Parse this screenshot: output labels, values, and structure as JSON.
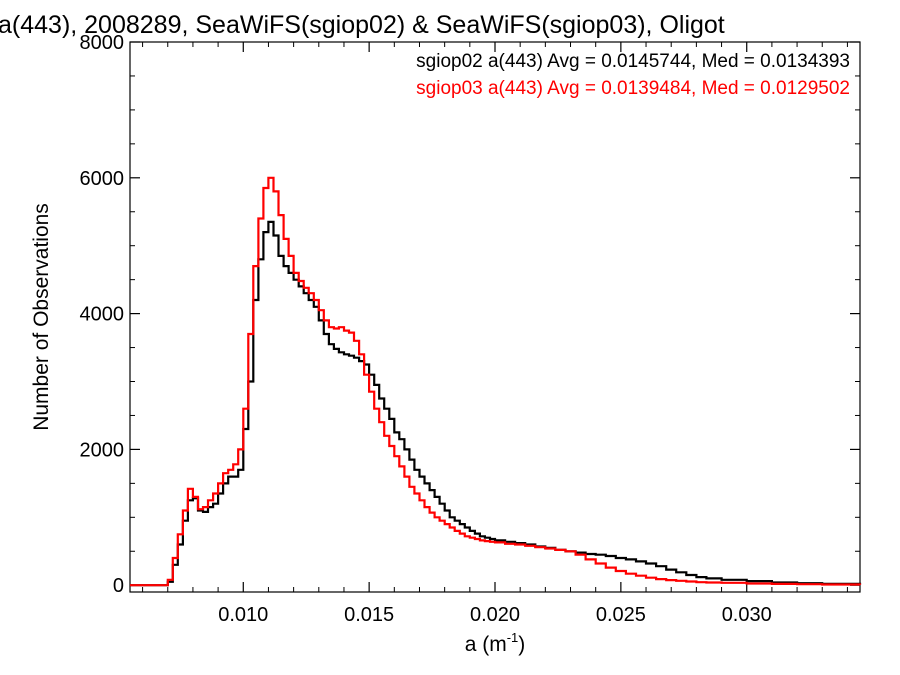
{
  "chart_data": {
    "type": "line",
    "title": "a(443), 2008289, SeaWiFS(sgiop02) & SeaWiFS(sgiop03), Oligot",
    "xlabel_base": "a (m",
    "xlabel_sup": "-1",
    "xlabel_close": ")",
    "ylabel": "Number of Observations",
    "xlim": [
      0.0055,
      0.0345
    ],
    "ylim": [
      -100,
      8000
    ],
    "x_ticks": [
      {
        "value": 0.01,
        "label": "0.010"
      },
      {
        "value": 0.015,
        "label": "0.015"
      },
      {
        "value": 0.02,
        "label": "0.020"
      },
      {
        "value": 0.025,
        "label": "0.025"
      },
      {
        "value": 0.03,
        "label": "0.030"
      }
    ],
    "y_ticks": [
      {
        "value": 0,
        "label": "0"
      },
      {
        "value": 2000,
        "label": "2000"
      },
      {
        "value": 4000,
        "label": "4000"
      },
      {
        "value": 6000,
        "label": "6000"
      },
      {
        "value": 8000,
        "label": "8000"
      }
    ],
    "grid": false,
    "legend_position": "top-right",
    "series": [
      {
        "name": "sgiop02",
        "legend": "sgiop02 a(443) Avg = 0.0145744, Med = 0.0134393",
        "color": "#000000",
        "points": [
          [
            0.0055,
            0
          ],
          [
            0.0068,
            0
          ],
          [
            0.007,
            50
          ],
          [
            0.0072,
            300
          ],
          [
            0.0074,
            600
          ],
          [
            0.0076,
            950
          ],
          [
            0.0078,
            1250
          ],
          [
            0.008,
            1280
          ],
          [
            0.0082,
            1100
          ],
          [
            0.0084,
            1080
          ],
          [
            0.0086,
            1150
          ],
          [
            0.0088,
            1200
          ],
          [
            0.009,
            1350
          ],
          [
            0.0092,
            1500
          ],
          [
            0.0094,
            1600
          ],
          [
            0.0096,
            1600
          ],
          [
            0.0098,
            1700
          ],
          [
            0.01,
            2300
          ],
          [
            0.0102,
            3000
          ],
          [
            0.0104,
            4200
          ],
          [
            0.0106,
            4800
          ],
          [
            0.0108,
            5200
          ],
          [
            0.011,
            5350
          ],
          [
            0.0112,
            5150
          ],
          [
            0.0114,
            4850
          ],
          [
            0.0116,
            4700
          ],
          [
            0.0118,
            4600
          ],
          [
            0.012,
            4500
          ],
          [
            0.0122,
            4400
          ],
          [
            0.0124,
            4300
          ],
          [
            0.0126,
            4200
          ],
          [
            0.0128,
            4100
          ],
          [
            0.013,
            3900
          ],
          [
            0.0132,
            3700
          ],
          [
            0.0134,
            3550
          ],
          [
            0.0136,
            3480
          ],
          [
            0.0138,
            3430
          ],
          [
            0.014,
            3400
          ],
          [
            0.0142,
            3380
          ],
          [
            0.0144,
            3350
          ],
          [
            0.0146,
            3300
          ],
          [
            0.0148,
            3250
          ],
          [
            0.015,
            3100
          ],
          [
            0.0152,
            2950
          ],
          [
            0.0154,
            2750
          ],
          [
            0.0156,
            2600
          ],
          [
            0.0158,
            2450
          ],
          [
            0.016,
            2250
          ],
          [
            0.0162,
            2150
          ],
          [
            0.0164,
            2000
          ],
          [
            0.0166,
            1850
          ],
          [
            0.0168,
            1700
          ],
          [
            0.017,
            1600
          ],
          [
            0.0172,
            1500
          ],
          [
            0.0174,
            1400
          ],
          [
            0.0176,
            1300
          ],
          [
            0.0178,
            1200
          ],
          [
            0.018,
            1100
          ],
          [
            0.0182,
            1000
          ],
          [
            0.0184,
            950
          ],
          [
            0.0186,
            900
          ],
          [
            0.0188,
            850
          ],
          [
            0.019,
            800
          ],
          [
            0.0192,
            760
          ],
          [
            0.0194,
            720
          ],
          [
            0.0196,
            700
          ],
          [
            0.0198,
            680
          ],
          [
            0.02,
            660
          ],
          [
            0.0204,
            640
          ],
          [
            0.0208,
            620
          ],
          [
            0.0212,
            600
          ],
          [
            0.0216,
            570
          ],
          [
            0.022,
            550
          ],
          [
            0.0224,
            520
          ],
          [
            0.0228,
            500
          ],
          [
            0.0232,
            480
          ],
          [
            0.0236,
            460
          ],
          [
            0.024,
            450
          ],
          [
            0.0244,
            430
          ],
          [
            0.0248,
            400
          ],
          [
            0.0252,
            380
          ],
          [
            0.0256,
            350
          ],
          [
            0.026,
            320
          ],
          [
            0.0264,
            280
          ],
          [
            0.0268,
            230
          ],
          [
            0.0272,
            190
          ],
          [
            0.0276,
            150
          ],
          [
            0.028,
            120
          ],
          [
            0.0284,
            100
          ],
          [
            0.029,
            80
          ],
          [
            0.03,
            60
          ],
          [
            0.031,
            40
          ],
          [
            0.032,
            30
          ],
          [
            0.033,
            20
          ],
          [
            0.0345,
            10
          ]
        ]
      },
      {
        "name": "sgiop03",
        "legend": "sgiop03 a(443) Avg = 0.0139484, Med = 0.0129502",
        "color": "#ff0000",
        "points": [
          [
            0.0055,
            0
          ],
          [
            0.0068,
            0
          ],
          [
            0.007,
            80
          ],
          [
            0.0072,
            400
          ],
          [
            0.0074,
            750
          ],
          [
            0.0076,
            1100
          ],
          [
            0.0078,
            1420
          ],
          [
            0.008,
            1300
          ],
          [
            0.0082,
            1120
          ],
          [
            0.0084,
            1150
          ],
          [
            0.0086,
            1250
          ],
          [
            0.0088,
            1350
          ],
          [
            0.009,
            1500
          ],
          [
            0.0092,
            1650
          ],
          [
            0.0094,
            1700
          ],
          [
            0.0096,
            1780
          ],
          [
            0.0098,
            2000
          ],
          [
            0.01,
            2600
          ],
          [
            0.0102,
            3700
          ],
          [
            0.0104,
            4700
          ],
          [
            0.0106,
            5400
          ],
          [
            0.0108,
            5850
          ],
          [
            0.011,
            6000
          ],
          [
            0.0112,
            5800
          ],
          [
            0.0114,
            5450
          ],
          [
            0.0116,
            5100
          ],
          [
            0.0118,
            4850
          ],
          [
            0.012,
            4600
          ],
          [
            0.0122,
            4480
          ],
          [
            0.0124,
            4380
          ],
          [
            0.0126,
            4300
          ],
          [
            0.0128,
            4200
          ],
          [
            0.013,
            4050
          ],
          [
            0.0132,
            3900
          ],
          [
            0.0134,
            3800
          ],
          [
            0.0136,
            3780
          ],
          [
            0.0138,
            3800
          ],
          [
            0.014,
            3750
          ],
          [
            0.0142,
            3720
          ],
          [
            0.0144,
            3600
          ],
          [
            0.0146,
            3400
          ],
          [
            0.0148,
            3100
          ],
          [
            0.015,
            2850
          ],
          [
            0.0152,
            2600
          ],
          [
            0.0154,
            2400
          ],
          [
            0.0156,
            2200
          ],
          [
            0.0158,
            2050
          ],
          [
            0.016,
            1900
          ],
          [
            0.0162,
            1750
          ],
          [
            0.0164,
            1600
          ],
          [
            0.0166,
            1450
          ],
          [
            0.0168,
            1350
          ],
          [
            0.017,
            1250
          ],
          [
            0.0172,
            1150
          ],
          [
            0.0174,
            1070
          ],
          [
            0.0176,
            1000
          ],
          [
            0.0178,
            950
          ],
          [
            0.018,
            900
          ],
          [
            0.0182,
            850
          ],
          [
            0.0184,
            800
          ],
          [
            0.0186,
            760
          ],
          [
            0.0188,
            720
          ],
          [
            0.019,
            700
          ],
          [
            0.0192,
            680
          ],
          [
            0.0194,
            660
          ],
          [
            0.0196,
            650
          ],
          [
            0.0198,
            640
          ],
          [
            0.02,
            630
          ],
          [
            0.0204,
            610
          ],
          [
            0.0208,
            600
          ],
          [
            0.0212,
            580
          ],
          [
            0.0216,
            560
          ],
          [
            0.022,
            540
          ],
          [
            0.0224,
            520
          ],
          [
            0.0228,
            500
          ],
          [
            0.0232,
            450
          ],
          [
            0.0236,
            380
          ],
          [
            0.024,
            320
          ],
          [
            0.0244,
            260
          ],
          [
            0.0248,
            210
          ],
          [
            0.0252,
            170
          ],
          [
            0.0256,
            140
          ],
          [
            0.026,
            110
          ],
          [
            0.0264,
            90
          ],
          [
            0.0268,
            75
          ],
          [
            0.0272,
            65
          ],
          [
            0.0276,
            55
          ],
          [
            0.028,
            45
          ],
          [
            0.0284,
            40
          ],
          [
            0.029,
            35
          ],
          [
            0.03,
            25
          ],
          [
            0.031,
            20
          ],
          [
            0.032,
            15
          ],
          [
            0.033,
            10
          ],
          [
            0.0345,
            5
          ]
        ]
      }
    ]
  }
}
